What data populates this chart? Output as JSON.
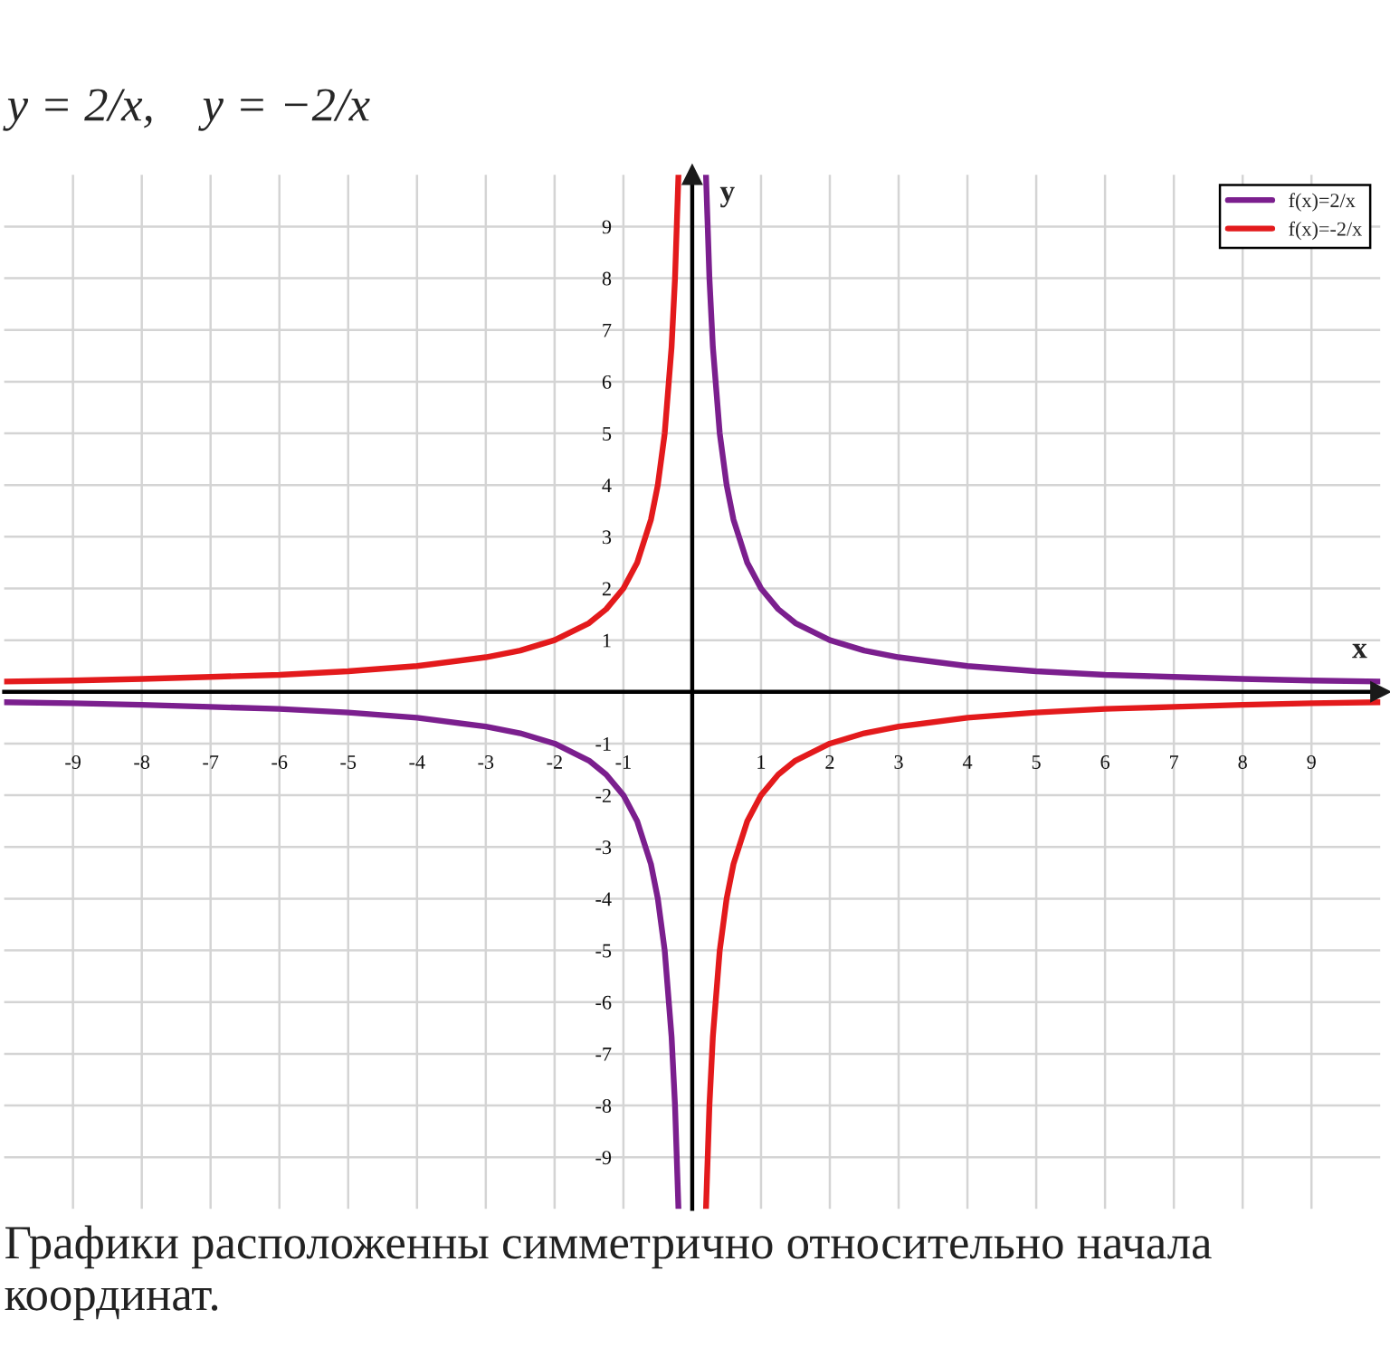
{
  "chart_data": {
    "type": "line",
    "title": "y = 2/x,    y = −2/x",
    "xlabel": "x",
    "ylabel": "y",
    "annotations": [
      "Графики расположенны симметрично относительно начала координат."
    ],
    "xlim": [
      -10,
      10
    ],
    "ylim": [
      -10,
      10
    ],
    "xticks": [
      -9,
      -8,
      -7,
      -6,
      -5,
      -4,
      -3,
      -2,
      -1,
      1,
      2,
      3,
      4,
      5,
      6,
      7,
      8,
      9
    ],
    "yticks": [
      -9,
      -8,
      -7,
      -6,
      -5,
      -4,
      -3,
      -2,
      -1,
      1,
      2,
      3,
      4,
      5,
      6,
      7,
      8,
      9
    ],
    "grid": true,
    "legend": "top right",
    "series": [
      {
        "name": "f(x)=2/x",
        "color": "#7b1f8e",
        "x": [
          -10,
          -9,
          -8,
          -7,
          -6,
          -5,
          -4,
          -3,
          -2.5,
          -2,
          -1.5,
          -1.25,
          -1,
          -0.8,
          -0.6,
          -0.5,
          -0.4,
          -0.3,
          -0.25,
          -0.2,
          0,
          0.2,
          0.25,
          0.3,
          0.4,
          0.5,
          0.6,
          0.8,
          1,
          1.25,
          1.5,
          2,
          2.5,
          3,
          4,
          5,
          6,
          7,
          8,
          9,
          10
        ],
        "values": [
          -0.2,
          -0.22,
          -0.25,
          -0.29,
          -0.33,
          -0.4,
          -0.5,
          -0.67,
          -0.8,
          -1,
          -1.33,
          -1.6,
          -2,
          -2.5,
          -3.33,
          -4,
          -5,
          -6.67,
          -8,
          -10,
          null,
          10,
          8,
          6.67,
          5,
          4,
          3.33,
          2.5,
          2,
          1.6,
          1.33,
          1,
          0.8,
          0.67,
          0.5,
          0.4,
          0.33,
          0.29,
          0.25,
          0.22,
          0.2
        ]
      },
      {
        "name": "f(x)=-2/x",
        "color": "#e31a1c",
        "x": [
          -10,
          -9,
          -8,
          -7,
          -6,
          -5,
          -4,
          -3,
          -2.5,
          -2,
          -1.5,
          -1.25,
          -1,
          -0.8,
          -0.6,
          -0.5,
          -0.4,
          -0.3,
          -0.25,
          -0.2,
          0,
          0.2,
          0.25,
          0.3,
          0.4,
          0.5,
          0.6,
          0.8,
          1,
          1.25,
          1.5,
          2,
          2.5,
          3,
          4,
          5,
          6,
          7,
          8,
          9,
          10
        ],
        "values": [
          0.2,
          0.22,
          0.25,
          0.29,
          0.33,
          0.4,
          0.5,
          0.67,
          0.8,
          1,
          1.33,
          1.6,
          2,
          2.5,
          3.33,
          4,
          5,
          6.67,
          8,
          10,
          null,
          -10,
          -8,
          -6.67,
          -5,
          -4,
          -3.33,
          -2.5,
          -2,
          -1.6,
          -1.33,
          -1,
          -0.8,
          -0.67,
          -0.5,
          -0.4,
          -0.33,
          -0.29,
          -0.25,
          -0.22,
          -0.2
        ]
      }
    ]
  }
}
